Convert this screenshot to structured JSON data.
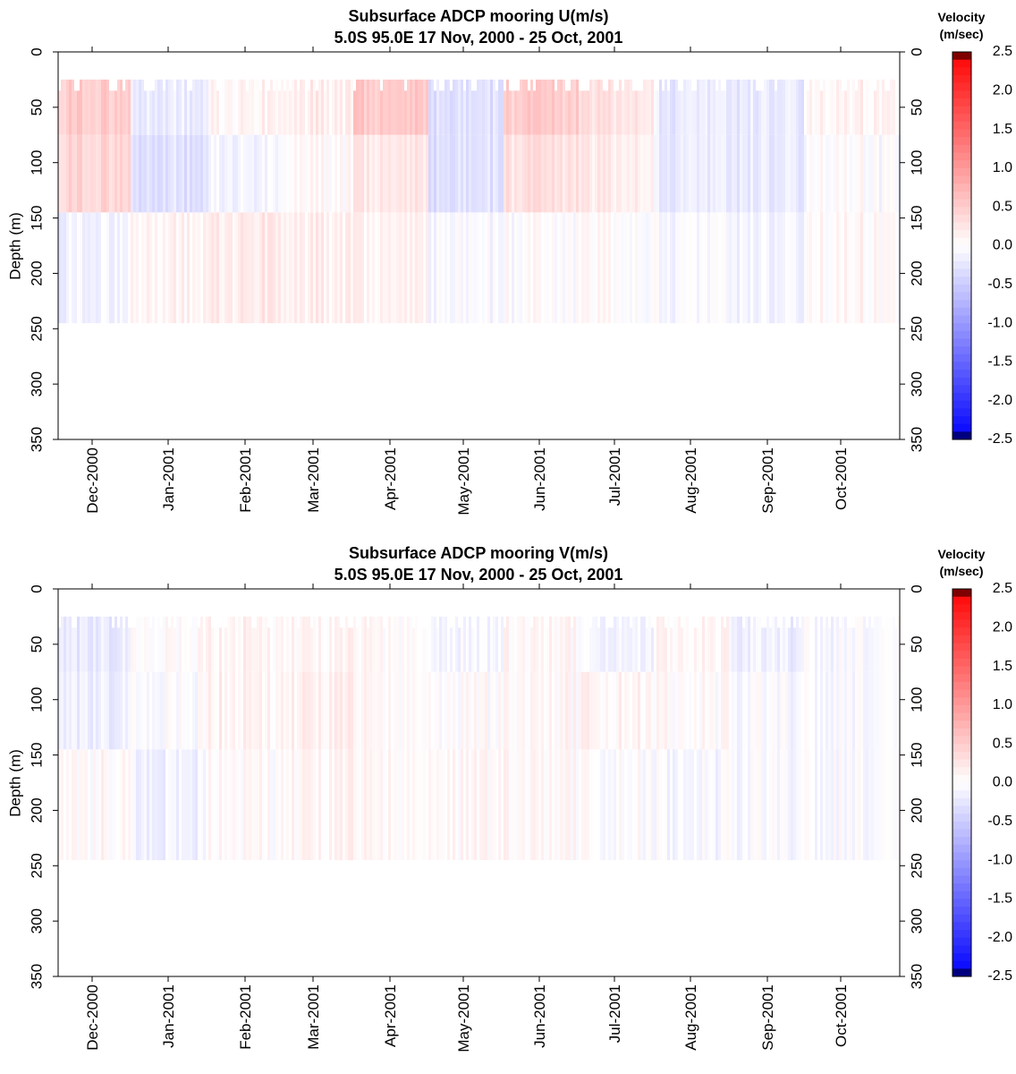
{
  "chart_data": [
    {
      "type": "heatmap",
      "title": "Subsurface ADCP mooring U(m/s)",
      "subtitle": "5.0S 95.0E     17 Nov, 2000 - 25 Oct, 2001",
      "ylabel": "Depth (m)",
      "xlabel": "",
      "ylim": [
        350,
        0
      ],
      "yticks": [
        "0",
        "50",
        "100",
        "150",
        "200",
        "250",
        "300",
        "350"
      ],
      "xticks": [
        "Dec-2000",
        "Jan-2001",
        "Feb-2001",
        "Mar-2001",
        "Apr-2001",
        "May-2001",
        "Jun-2001",
        "Jul-2001",
        "Aug-2001",
        "Sep-2001",
        "Oct-2001"
      ],
      "x_range": [
        "2000-11-17",
        "2001-10-25"
      ],
      "data_depth_range_m": [
        25,
        245
      ],
      "colorbar": {
        "label_line1": "Velocity",
        "label_line2": "(m/sec)",
        "range": [
          -2.5,
          2.5
        ],
        "ticks": [
          "2.5",
          "2.0",
          "1.5",
          "1.0",
          "0.5",
          "0.0",
          "-0.5",
          "-1.0",
          "-1.5",
          "-2.0",
          "-2.5"
        ]
      },
      "approx_values_by_month": {
        "depth_bands_m": [
          "25-75",
          "75-145",
          "145-245"
        ],
        "months": [
          "Dec-2000",
          "Jan-2001",
          "Feb-2001",
          "Mar-2001",
          "Apr-2001",
          "May-2001",
          "Jun-2001",
          "Jul-2001",
          "Aug-2001",
          "Sep-2001",
          "Oct-2001"
        ],
        "values": [
          [
            0.5,
            -0.2,
            0.1,
            0.15,
            0.5,
            -0.3,
            0.5,
            0.3,
            -0.2,
            -0.2,
            0.1
          ],
          [
            0.4,
            -0.3,
            -0.1,
            0.05,
            0.2,
            -0.3,
            0.3,
            0.2,
            -0.2,
            -0.2,
            0.0
          ],
          [
            -0.1,
            0.1,
            0.2,
            0.15,
            0.1,
            -0.05,
            0.0,
            0.05,
            -0.05,
            -0.1,
            0.05
          ]
        ]
      },
      "colors": {
        "negative": "#0000ff",
        "zero": "#ffffff",
        "positive": "#ff0000"
      }
    },
    {
      "type": "heatmap",
      "title": "Subsurface ADCP mooring V(m/s)",
      "subtitle": "5.0S 95.0E     17 Nov, 2000 - 25 Oct, 2001",
      "ylabel": "Depth (m)",
      "xlabel": "",
      "ylim": [
        350,
        0
      ],
      "yticks": [
        "0",
        "50",
        "100",
        "150",
        "200",
        "250",
        "300",
        "350"
      ],
      "xticks": [
        "Dec-2000",
        "Jan-2001",
        "Feb-2001",
        "Mar-2001",
        "Apr-2001",
        "May-2001",
        "Jun-2001",
        "Jul-2001",
        "Aug-2001",
        "Sep-2001",
        "Oct-2001"
      ],
      "x_range": [
        "2000-11-17",
        "2001-10-25"
      ],
      "data_depth_range_m": [
        25,
        245
      ],
      "colorbar": {
        "label_line1": "Velocity",
        "label_line2": "(m/sec)",
        "range": [
          -2.5,
          2.5
        ],
        "ticks": [
          "2.5",
          "2.0",
          "1.5",
          "1.0",
          "0.5",
          "0.0",
          "-0.5",
          "-1.0",
          "-1.5",
          "-2.0",
          "-2.5"
        ]
      },
      "approx_values_by_month": {
        "depth_bands_m": [
          "25-75",
          "75-145",
          "145-245"
        ],
        "months": [
          "Dec-2000",
          "Jan-2001",
          "Feb-2001",
          "Mar-2001",
          "Apr-2001",
          "May-2001",
          "Jun-2001",
          "Jul-2001",
          "Aug-2001",
          "Sep-2001",
          "Oct-2001"
        ],
        "values": [
          [
            -0.2,
            0.05,
            0.1,
            0.1,
            0.05,
            -0.1,
            0.05,
            -0.1,
            0.1,
            -0.15,
            -0.05
          ],
          [
            -0.15,
            0.0,
            0.1,
            0.15,
            0.05,
            0.0,
            0.05,
            0.1,
            0.05,
            -0.05,
            -0.05
          ],
          [
            0.05,
            -0.1,
            0.05,
            0.1,
            0.05,
            0.05,
            0.05,
            0.0,
            -0.05,
            -0.05,
            -0.05
          ]
        ]
      },
      "colors": {
        "negative": "#0000ff",
        "zero": "#ffffff",
        "positive": "#ff0000"
      }
    }
  ]
}
